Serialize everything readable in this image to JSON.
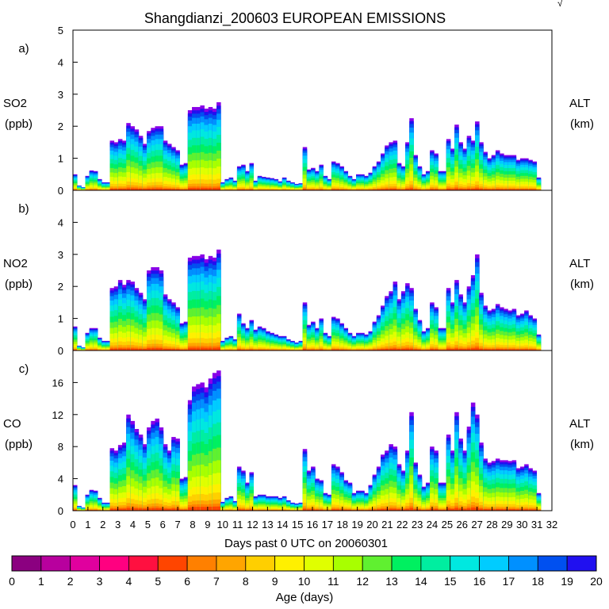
{
  "chart_data": {
    "type": "area",
    "title": "Shangdianzi_200603 EUROPEAN EMISSIONS",
    "xlabel": "Days past 0 UTC on 20060301",
    "xlim": [
      0,
      32
    ],
    "x_ticks": [
      "0",
      "1",
      "2",
      "3",
      "4",
      "5",
      "6",
      "7",
      "8",
      "9",
      "10",
      "11",
      "12",
      "13",
      "14",
      "15",
      "16",
      "17",
      "18",
      "19",
      "20",
      "21",
      "22",
      "23",
      "24",
      "25",
      "26",
      "27",
      "28",
      "29",
      "30",
      "31",
      "32"
    ],
    "corner_mark": "√",
    "panels": [
      {
        "letter": "a)",
        "species": "SO2",
        "unit": "(ppb)",
        "right_label": "ALT",
        "right_unit": "(km)",
        "ylim": [
          0,
          5
        ],
        "y_ticks": [
          "0",
          "1",
          "2",
          "3",
          "4",
          "5"
        ],
        "y_tick_values": [
          0,
          1,
          2,
          3,
          4,
          5
        ],
        "values": [
          0.5,
          0.15,
          0.1,
          0.45,
          0.62,
          0.6,
          0.35,
          0.25,
          0.25,
          1.55,
          1.5,
          1.6,
          1.55,
          2.1,
          2.0,
          1.9,
          1.7,
          1.45,
          1.85,
          1.95,
          2.0,
          2.0,
          1.55,
          1.45,
          1.35,
          1.25,
          0.8,
          0.85,
          2.5,
          2.6,
          2.6,
          2.65,
          2.55,
          2.6,
          2.55,
          2.75,
          0.25,
          0.35,
          0.4,
          0.3,
          0.75,
          0.8,
          0.6,
          0.85,
          0.3,
          0.45,
          0.42,
          0.4,
          0.38,
          0.35,
          0.28,
          0.4,
          0.3,
          0.25,
          0.2,
          0.22,
          1.35,
          0.65,
          0.7,
          0.6,
          0.8,
          0.45,
          0.35,
          0.9,
          0.85,
          0.75,
          0.6,
          0.45,
          0.35,
          0.5,
          0.5,
          0.45,
          0.55,
          0.75,
          0.9,
          1.15,
          1.4,
          1.5,
          1.55,
          0.85,
          0.75,
          1.5,
          2.25,
          1.1,
          0.75,
          0.5,
          0.6,
          1.25,
          1.15,
          0.6,
          0.6,
          1.6,
          1.3,
          2.05,
          1.5,
          1.3,
          1.7,
          1.55,
          2.15,
          1.5,
          1.2,
          1.0,
          1.1,
          1.25,
          1.15,
          1.1,
          1.1,
          1.1,
          0.95,
          1.0,
          1.0,
          0.95,
          0.9,
          0.4
        ]
      },
      {
        "letter": "b)",
        "species": "NO2",
        "unit": "(ppb)",
        "right_label": "ALT",
        "right_unit": "(km)",
        "ylim": [
          0,
          5
        ],
        "y_ticks": [
          "0",
          "1",
          "2",
          "3",
          "4"
        ],
        "y_tick_values": [
          0,
          1,
          2,
          3,
          4
        ],
        "values": [
          0.75,
          0.15,
          0.1,
          0.55,
          0.7,
          0.7,
          0.4,
          0.3,
          0.3,
          1.95,
          2.0,
          2.2,
          2.05,
          2.2,
          2.15,
          1.95,
          1.8,
          1.6,
          2.5,
          2.6,
          2.6,
          2.5,
          1.75,
          1.6,
          1.5,
          1.35,
          0.85,
          0.9,
          2.9,
          2.95,
          2.95,
          3.0,
          2.85,
          2.95,
          2.9,
          3.15,
          0.3,
          0.4,
          0.45,
          0.35,
          1.15,
          0.85,
          0.7,
          0.95,
          0.65,
          0.75,
          0.7,
          0.6,
          0.55,
          0.5,
          0.45,
          0.45,
          0.35,
          0.3,
          0.25,
          0.3,
          1.5,
          0.8,
          0.9,
          0.7,
          1.0,
          0.55,
          0.45,
          1.05,
          1.0,
          0.85,
          0.7,
          0.55,
          0.45,
          0.55,
          0.55,
          0.5,
          0.6,
          0.9,
          1.1,
          1.4,
          1.7,
          1.85,
          2.15,
          1.6,
          1.85,
          2.1,
          1.95,
          1.3,
          0.95,
          0.6,
          0.7,
          1.5,
          1.35,
          0.7,
          0.7,
          1.95,
          1.5,
          2.2,
          1.75,
          1.5,
          2.0,
          2.35,
          3.0,
          1.8,
          1.4,
          1.25,
          1.3,
          1.45,
          1.35,
          1.3,
          1.25,
          1.3,
          1.1,
          1.15,
          1.25,
          1.1,
          1.0,
          0.5
        ]
      },
      {
        "letter": "c)",
        "species": "CO",
        "unit": "(ppb)",
        "right_label": "ALT",
        "right_unit": "(km)",
        "ylim": [
          0,
          20
        ],
        "y_ticks": [
          "0",
          "4",
          "8",
          "12",
          "16"
        ],
        "y_tick_values": [
          0,
          4,
          8,
          12,
          16
        ],
        "values": [
          3.2,
          0.6,
          0.4,
          2.0,
          2.6,
          2.5,
          1.6,
          1.0,
          1.0,
          7.8,
          7.5,
          8.2,
          8.5,
          12.0,
          11.2,
          10.2,
          9.5,
          8.3,
          10.4,
          11.2,
          11.5,
          10.4,
          8.3,
          7.5,
          9.2,
          9.0,
          4.0,
          4.2,
          13.8,
          15.5,
          15.8,
          16.0,
          15.4,
          16.5,
          17.2,
          17.5,
          1.1,
          1.6,
          1.8,
          1.2,
          5.5,
          5.0,
          3.5,
          4.8,
          1.8,
          2.0,
          2.0,
          1.8,
          1.8,
          1.8,
          1.6,
          1.8,
          1.3,
          1.0,
          0.9,
          1.0,
          7.7,
          5.0,
          5.5,
          4.0,
          3.8,
          2.2,
          2.0,
          5.8,
          5.5,
          4.8,
          3.8,
          3.5,
          2.2,
          2.5,
          2.5,
          2.2,
          3.2,
          4.5,
          5.5,
          7.0,
          7.5,
          8.3,
          8.0,
          5.8,
          5.0,
          7.5,
          12.3,
          6.0,
          4.5,
          3.0,
          3.5,
          8.0,
          7.5,
          3.5,
          3.5,
          9.5,
          7.5,
          12.3,
          9.0,
          7.5,
          10.5,
          13.5,
          12.0,
          8.5,
          6.5,
          6.0,
          6.2,
          6.5,
          6.3,
          6.3,
          6.2,
          6.3,
          5.3,
          5.5,
          5.8,
          5.3,
          5.0,
          2.2
        ]
      }
    ],
    "colorbar": {
      "label": "Age (days)",
      "tick_labels": [
        "0",
        "1",
        "2",
        "3",
        "4",
        "5",
        "6",
        "7",
        "8",
        "9",
        "10",
        "11",
        "12",
        "13",
        "14",
        "15",
        "16",
        "17",
        "18",
        "19",
        "20"
      ],
      "colors": [
        "#8B0080",
        "#B8009E",
        "#E0009E",
        "#FF0080",
        "#FF1040",
        "#FF4500",
        "#FF8000",
        "#FFA500",
        "#FFCF00",
        "#FFF000",
        "#E0FF00",
        "#A8FF00",
        "#60F030",
        "#00F060",
        "#00EEA0",
        "#00E8E0",
        "#00CCFF",
        "#0090FF",
        "#0050F0",
        "#2010F0",
        "#8800E8"
      ]
    }
  }
}
